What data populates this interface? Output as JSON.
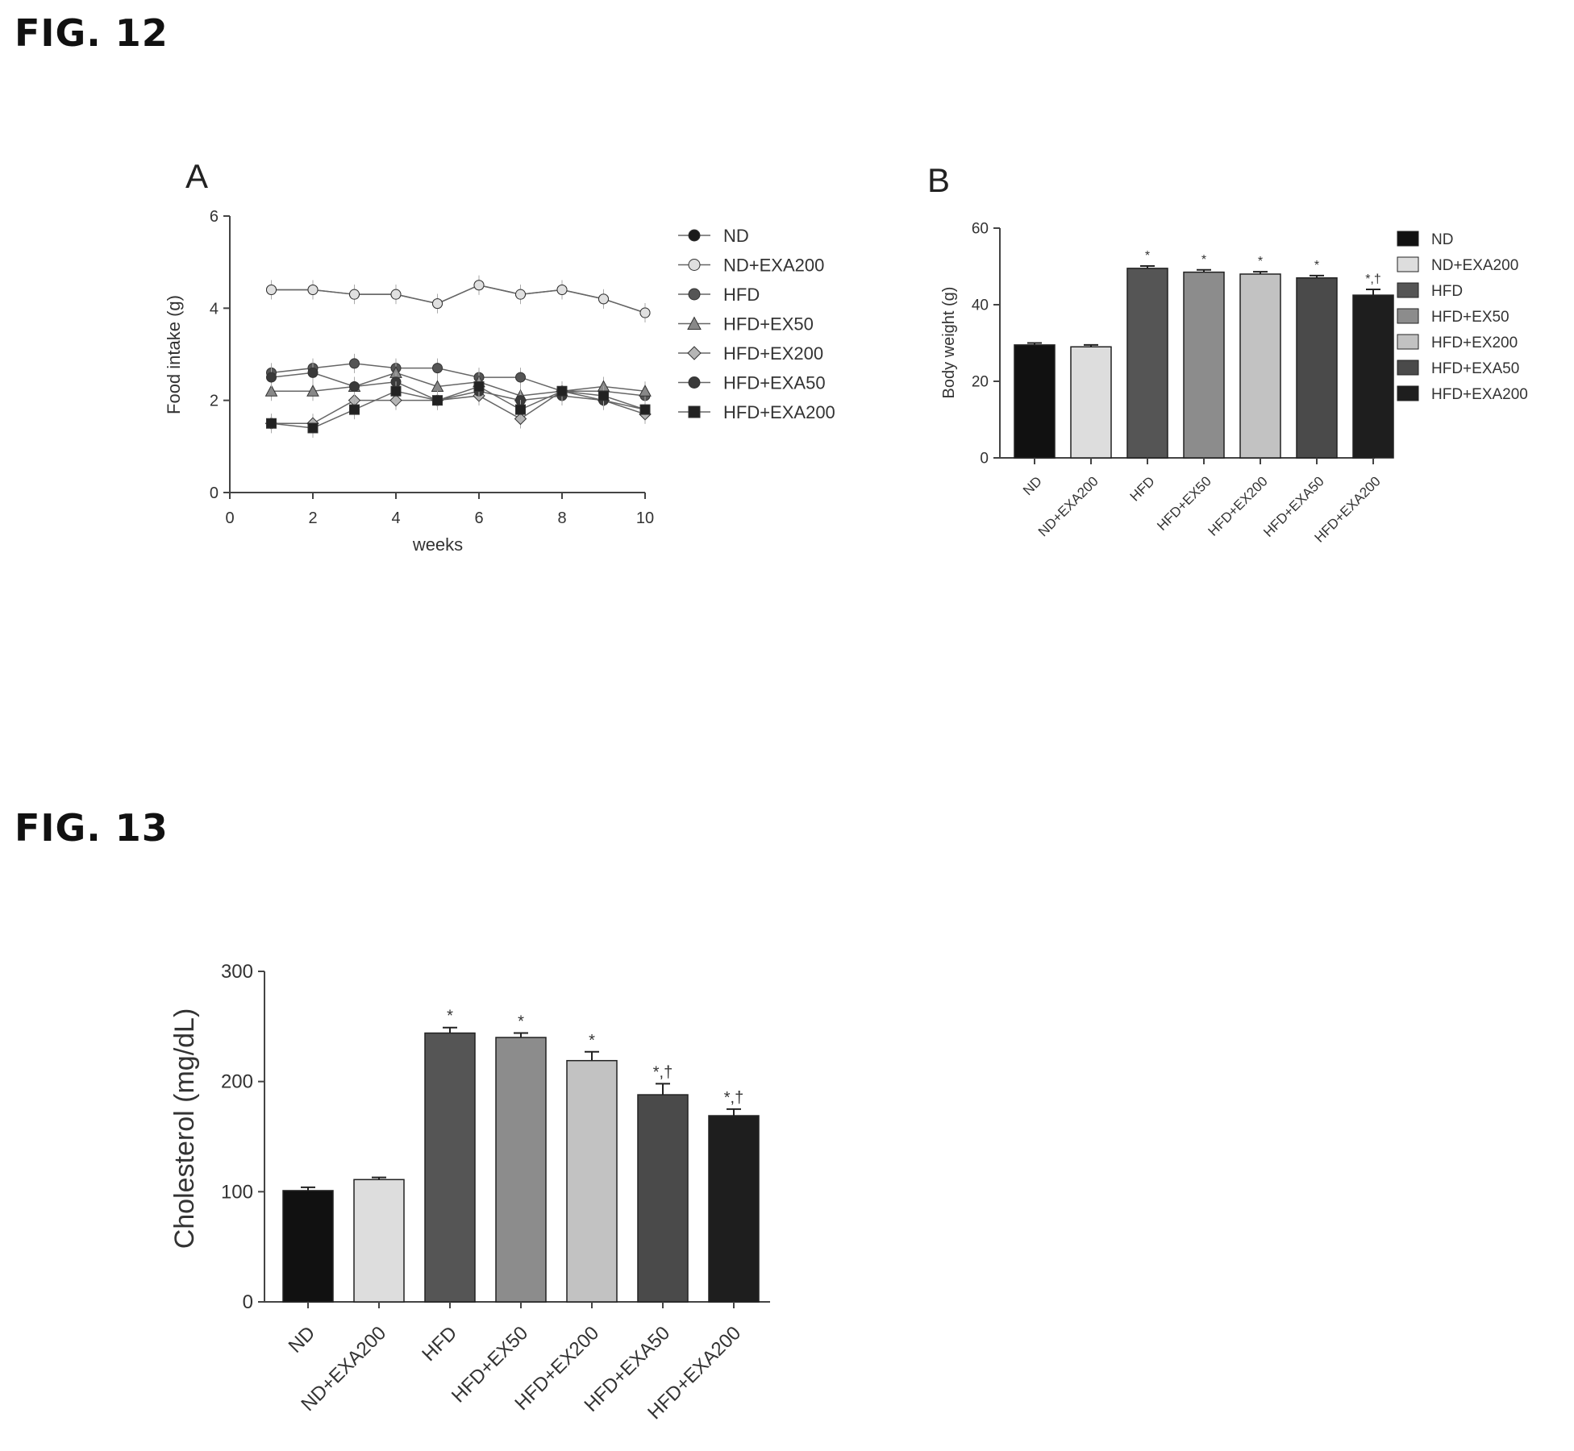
{
  "figures": [
    {
      "title": "FIG. 12",
      "panels": [
        "A",
        "B"
      ]
    },
    {
      "title": "FIG. 13"
    }
  ],
  "chart_data": [
    {
      "id": "fig12A",
      "type": "line",
      "panel": "A",
      "xlabel": "weeks",
      "ylabel": "Food intake (g)",
      "xlim": [
        0,
        10
      ],
      "ylim": [
        0,
        6
      ],
      "xticks": [
        "0",
        "2",
        "4",
        "6",
        "8",
        "10"
      ],
      "yticks": [
        "0",
        "2",
        "4",
        "6"
      ],
      "grid": false,
      "legend_position": "right",
      "x": [
        1,
        2,
        3,
        4,
        5,
        6,
        7,
        8,
        9,
        10
      ],
      "series": [
        {
          "name": "ND",
          "marker": "circle",
          "color": "#1a1a1a",
          "values": [
            4.4,
            4.4,
            4.3,
            4.3,
            4.1,
            4.5,
            4.3,
            4.4,
            4.2,
            3.9
          ]
        },
        {
          "name": "ND+EXA200",
          "marker": "circle",
          "color": "#e0e0e0",
          "values": [
            4.4,
            4.4,
            4.3,
            4.3,
            4.1,
            4.5,
            4.3,
            4.4,
            4.2,
            3.9
          ]
        },
        {
          "name": "HFD",
          "marker": "circle",
          "color": "#555555",
          "values": [
            2.6,
            2.7,
            2.8,
            2.7,
            2.7,
            2.5,
            2.5,
            2.2,
            2.2,
            2.1
          ]
        },
        {
          "name": "HFD+EX50",
          "marker": "triangle",
          "color": "#888888",
          "values": [
            2.2,
            2.2,
            2.3,
            2.6,
            2.3,
            2.4,
            2.1,
            2.2,
            2.3,
            2.2
          ]
        },
        {
          "name": "HFD+EX200",
          "marker": "diamond",
          "color": "#b5b5b5",
          "values": [
            1.5,
            1.5,
            2.0,
            2.0,
            2.0,
            2.1,
            1.6,
            2.2,
            2.0,
            1.7
          ]
        },
        {
          "name": "HFD+EXA50",
          "marker": "circle",
          "color": "#3a3a3a",
          "values": [
            2.5,
            2.6,
            2.3,
            2.4,
            2.0,
            2.2,
            2.0,
            2.1,
            2.0,
            1.8
          ]
        },
        {
          "name": "HFD+EXA200",
          "marker": "square",
          "color": "#222222",
          "values": [
            1.5,
            1.4,
            1.8,
            2.2,
            2.0,
            2.3,
            1.8,
            2.2,
            2.1,
            1.8
          ]
        }
      ]
    },
    {
      "id": "fig12B",
      "type": "bar",
      "panel": "B",
      "ylabel": "Body weight (g)",
      "ylim": [
        0,
        60
      ],
      "yticks": [
        "0",
        "20",
        "40",
        "60"
      ],
      "grid": false,
      "legend_position": "right",
      "categories": [
        "ND",
        "ND+EXA200",
        "HFD",
        "HFD+EX50",
        "HFD+EX200",
        "HFD+EXA50",
        "HFD+EXA200"
      ],
      "values": [
        29.5,
        29,
        49.5,
        48.5,
        48,
        47,
        42.5
      ],
      "errors": [
        0.5,
        0.5,
        0.6,
        0.6,
        0.6,
        0.6,
        1.5
      ],
      "annotations": [
        "",
        "",
        "*",
        "*",
        "*",
        "*",
        "*,†"
      ],
      "colors": [
        "#111111",
        "#dddddd",
        "#555555",
        "#8c8c8c",
        "#c2c2c2",
        "#4a4a4a",
        "#1e1e1e"
      ]
    },
    {
      "id": "fig13",
      "type": "bar",
      "ylabel": "Cholesterol (mg/dL)",
      "ylim": [
        0,
        300
      ],
      "yticks": [
        "0",
        "100",
        "200",
        "300"
      ],
      "grid": false,
      "categories": [
        "ND",
        "ND+EXA200",
        "HFD",
        "HFD+EX50",
        "HFD+EX200",
        "HFD+EXA50",
        "HFD+EXA200"
      ],
      "values": [
        101,
        111,
        244,
        240,
        219,
        188,
        169
      ],
      "errors": [
        3,
        2,
        5,
        4,
        8,
        10,
        6
      ],
      "annotations": [
        "",
        "",
        "*",
        "*",
        "*",
        "*,†",
        "*,†"
      ],
      "colors": [
        "#111111",
        "#dddddd",
        "#555555",
        "#8c8c8c",
        "#c2c2c2",
        "#4a4a4a",
        "#1e1e1e"
      ]
    }
  ]
}
